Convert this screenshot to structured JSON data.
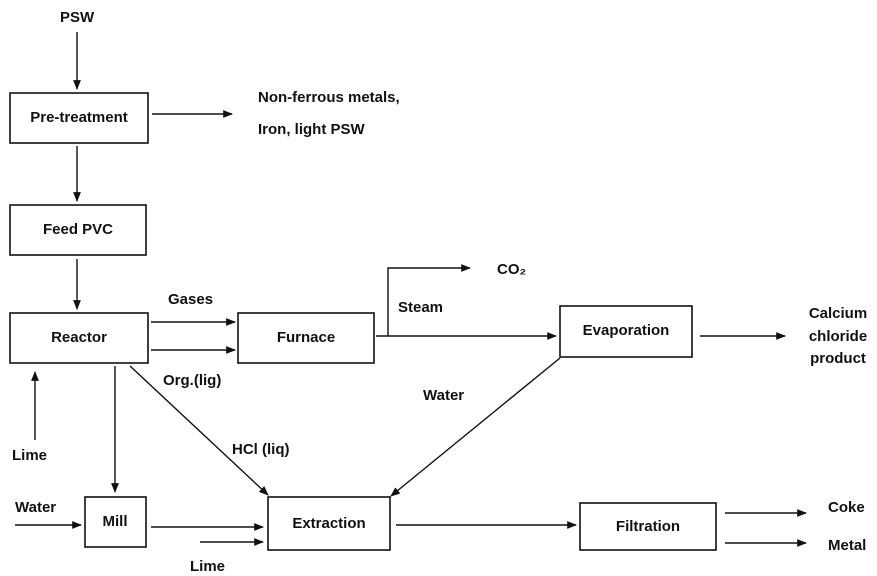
{
  "nodes": [
    {
      "label": "Pre-treatment"
    },
    {
      "label": "Feed PVC"
    },
    {
      "label": "Reactor"
    },
    {
      "label": "Furnace"
    },
    {
      "label": "Evaporation"
    },
    {
      "label": "Mill"
    },
    {
      "label": "Extraction"
    },
    {
      "label": "Filtration"
    }
  ],
  "labels": {
    "psw": "PSW",
    "byproducts": [
      "Non-ferrous metals,",
      "Iron, light PSW"
    ],
    "gases": "Gases",
    "org": "Org.(lig)",
    "steam": "Steam",
    "co2": "CO₂",
    "product": [
      "Calcium",
      "chloride",
      "product"
    ],
    "water_recycle": "Water",
    "hcl": "HCl (liq)",
    "lime_reactor": "Lime",
    "water_mill": "Water",
    "lime_extraction": "Lime",
    "coke": "Coke",
    "metal": "Metal"
  }
}
